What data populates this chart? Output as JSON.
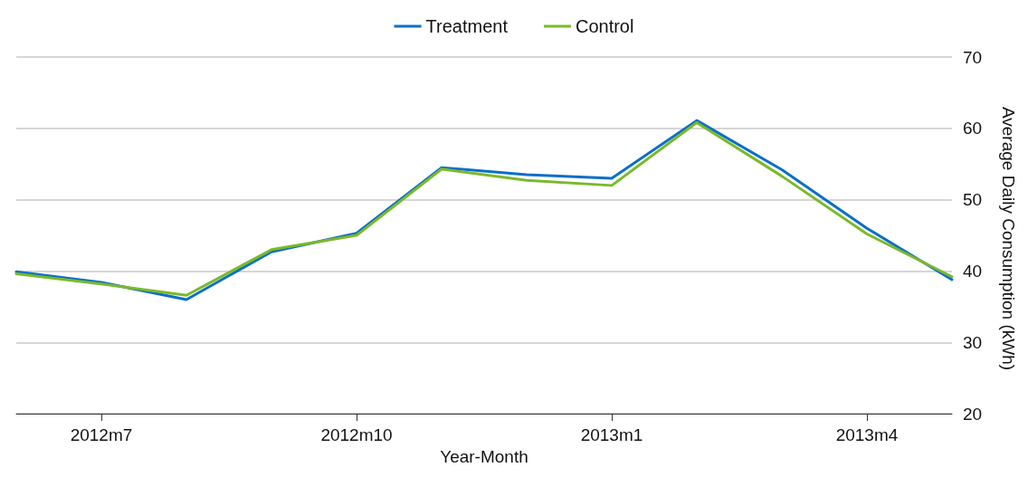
{
  "chart_data": {
    "type": "line",
    "xlabel": "Year-Month",
    "ylabel": "Average Daily Consumption (kWh)",
    "categories": [
      null,
      "2012m7",
      null,
      null,
      "2012m10",
      null,
      null,
      "2013m1",
      null,
      null,
      "2013m4",
      null
    ],
    "series": [
      {
        "name": "Treatment",
        "color": "#0a6fc8",
        "values": [
          39.9,
          38.4,
          36.0,
          42.7,
          45.3,
          54.5,
          53.5,
          53.0,
          61.1,
          54.2,
          46.0,
          38.8
        ]
      },
      {
        "name": "Control",
        "color": "#7ab929",
        "values": [
          39.6,
          38.2,
          36.6,
          43.0,
          45.0,
          54.3,
          52.7,
          52.0,
          60.8,
          53.3,
          45.2,
          39.2
        ]
      }
    ],
    "ylim": [
      20,
      70
    ],
    "yticks": [
      20,
      30,
      40,
      50,
      60,
      70
    ],
    "grid": "y",
    "legend": "top",
    "marker": "none",
    "line_style": "solid"
  }
}
